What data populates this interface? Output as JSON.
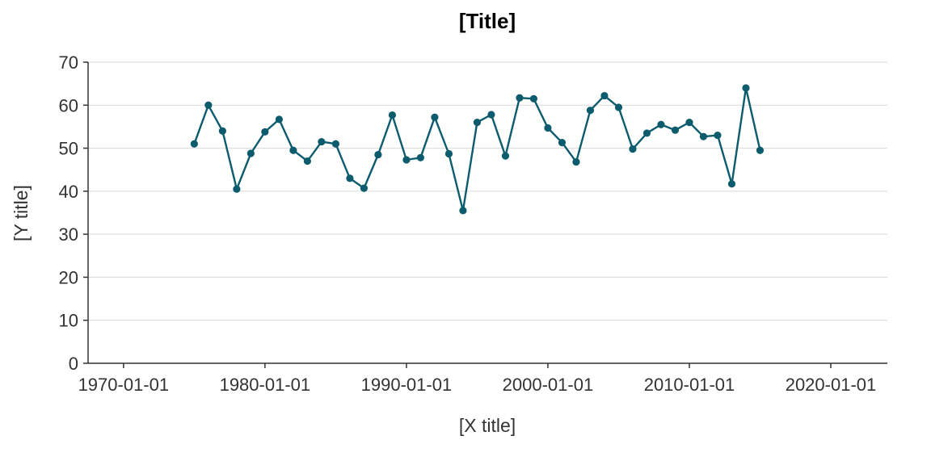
{
  "chart_data": {
    "type": "line",
    "title": "[Title]",
    "xlabel": "[X title]",
    "ylabel": "[Y title]",
    "x_ticks": [
      "1970-01-01",
      "1980-01-01",
      "1990-01-01",
      "2000-01-01",
      "2010-01-01",
      "2020-01-01"
    ],
    "xlim": [
      "1967-07-01",
      "2024-01-01"
    ],
    "ylim": [
      0,
      70
    ],
    "y_ticks": [
      0,
      10,
      20,
      30,
      40,
      50,
      60,
      70
    ],
    "grid": "horizontal",
    "line_color": "#0d5c6e",
    "x": [
      "1975-01-01",
      "1976-01-01",
      "1977-01-01",
      "1978-01-01",
      "1979-01-01",
      "1980-01-01",
      "1981-01-01",
      "1982-01-01",
      "1983-01-01",
      "1984-01-01",
      "1985-01-01",
      "1986-01-01",
      "1987-01-01",
      "1988-01-01",
      "1989-01-01",
      "1990-01-01",
      "1991-01-01",
      "1992-01-01",
      "1993-01-01",
      "1994-01-01",
      "1995-01-01",
      "1996-01-01",
      "1997-01-01",
      "1998-01-01",
      "1999-01-01",
      "2000-01-01",
      "2001-01-01",
      "2002-01-01",
      "2003-01-01",
      "2004-01-01",
      "2005-01-01",
      "2006-01-01",
      "2007-01-01",
      "2008-01-01",
      "2009-01-01",
      "2010-01-01",
      "2011-01-01",
      "2012-01-01",
      "2013-01-01",
      "2014-01-01",
      "2015-01-01"
    ],
    "values": [
      51.0,
      60.0,
      54.0,
      40.5,
      48.8,
      53.8,
      56.7,
      49.5,
      47.0,
      51.5,
      51.0,
      43.0,
      40.7,
      48.5,
      57.7,
      47.3,
      47.8,
      57.2,
      48.7,
      35.5,
      56.0,
      57.8,
      48.2,
      61.7,
      61.5,
      54.7,
      51.3,
      46.8,
      58.8,
      62.2,
      59.5,
      49.8,
      53.5,
      55.5,
      54.2,
      56.0,
      52.7,
      53.0,
      41.7,
      64.0,
      49.5
    ]
  }
}
